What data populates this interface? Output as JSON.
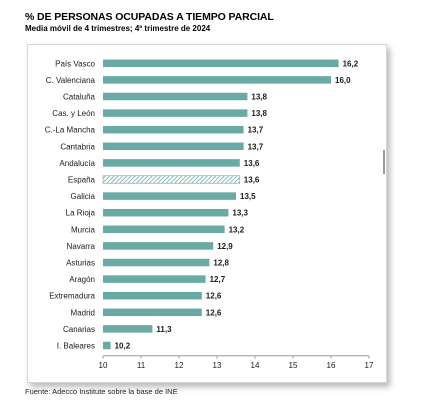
{
  "title": "% DE PERSONAS OCUPADAS A TIEMPO PARCIAL",
  "subtitle": "Media móvil de 4 trimestres; 4º trimestre de 2024",
  "source": "Fuente: Adecco Institute sobre la base de INE",
  "chart_data": {
    "type": "bar",
    "orientation": "horizontal",
    "categories": [
      "País Vasco",
      "C. Valenciana",
      "Cataluña",
      "Cas. y León",
      "C.-La Mancha",
      "Cantabria",
      "Andalucía",
      "España",
      "Galicia",
      "La Rioja",
      "Murcia",
      "Navarra",
      "Asturias",
      "Aragón",
      "Extremadura",
      "Madrid",
      "Canarias",
      "I. Baleares"
    ],
    "values": [
      16.2,
      16.0,
      13.8,
      13.8,
      13.7,
      13.7,
      13.6,
      13.6,
      13.5,
      13.3,
      13.2,
      12.9,
      12.8,
      12.7,
      12.6,
      12.6,
      11.3,
      10.2
    ],
    "value_labels": [
      "16,2",
      "16,0",
      "13,8",
      "13,8",
      "13,7",
      "13,7",
      "13,6",
      "13,6",
      "13,5",
      "13,3",
      "13,2",
      "12,9",
      "12,8",
      "12,7",
      "12,6",
      "12,6",
      "11,3",
      "10,2"
    ],
    "highlighted": [
      "España"
    ],
    "xlim": [
      10,
      17
    ],
    "xticks": [
      10,
      11,
      12,
      13,
      14,
      15,
      16,
      17
    ],
    "grid": false,
    "legend": "none",
    "colors": {
      "bar": "#6aaaa4",
      "highlight_bar": "#6aaaa4"
    }
  }
}
